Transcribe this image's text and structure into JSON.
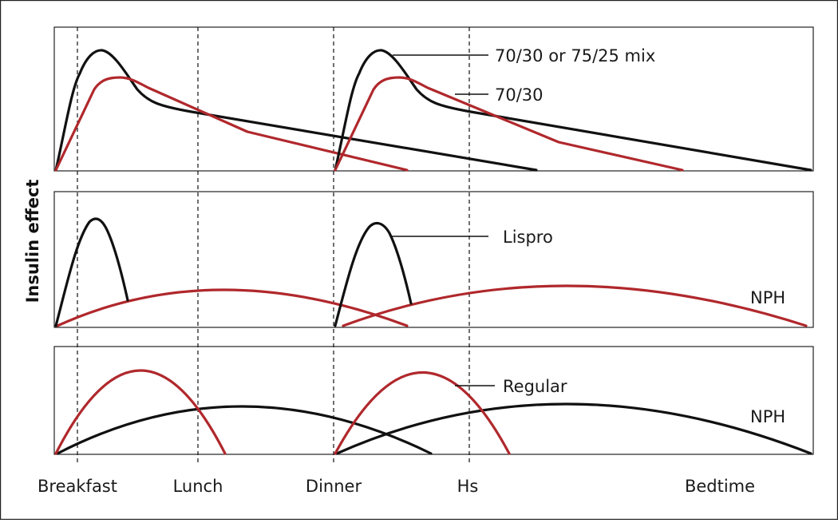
{
  "colors": {
    "black_curve": "#111111",
    "red_curve": "#b0282c"
  },
  "y_axis_label": "Insulin effect",
  "x_labels": [
    "Breakfast",
    "Lunch",
    "Dinner",
    "Hs",
    "Bedtime"
  ],
  "panels": [
    {
      "labels": [
        "70/30 or 75/25 mix",
        "70/30"
      ]
    },
    {
      "labels": [
        "Lispro",
        "NPH"
      ]
    },
    {
      "labels": [
        "Regular",
        "NPH"
      ]
    }
  ]
}
